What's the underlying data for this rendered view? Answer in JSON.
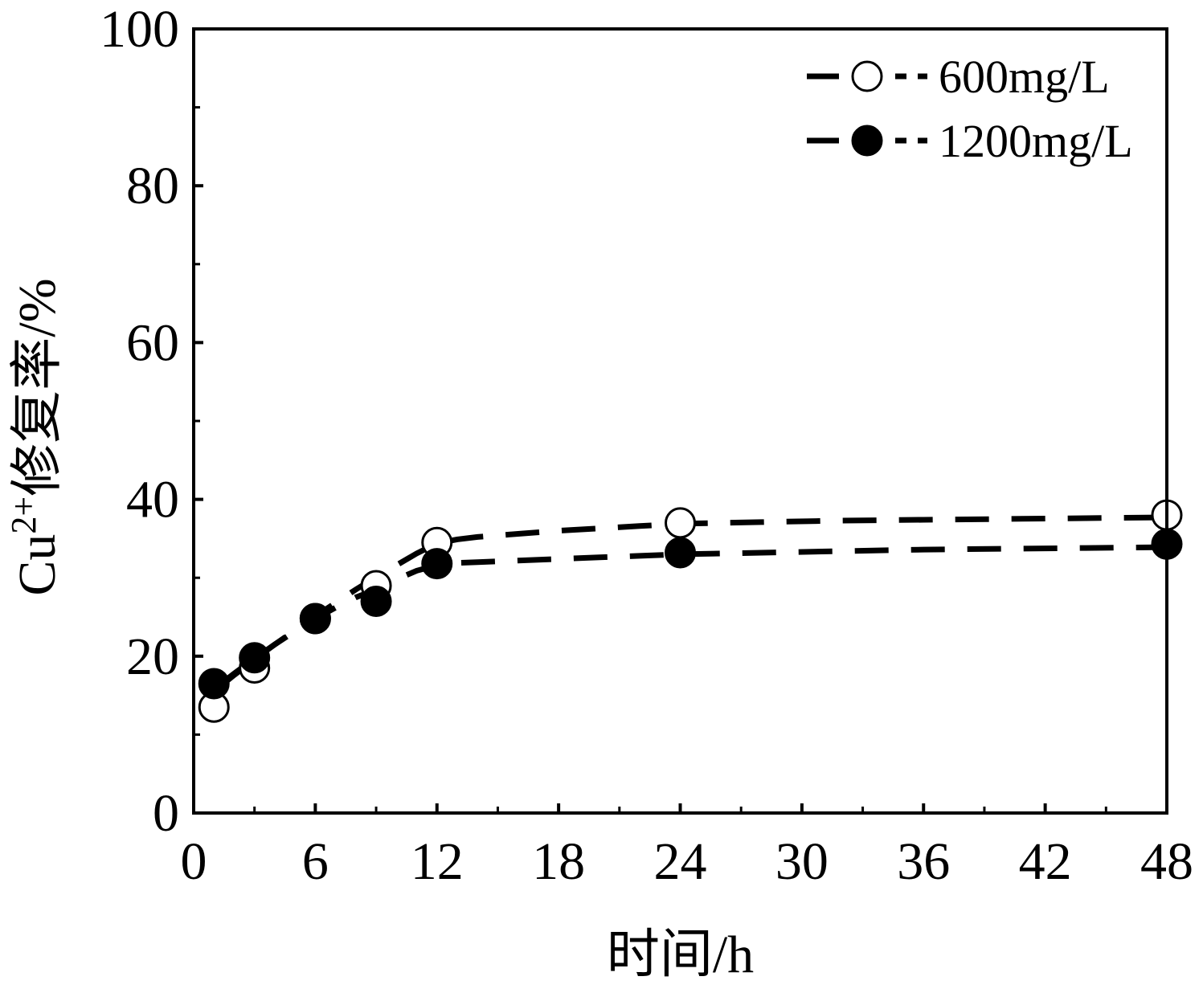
{
  "chart_data": {
    "type": "scatter",
    "title": "",
    "xlabel": "时间/h",
    "ylabel_main": "Cu",
    "ylabel_sup": "2+",
    "ylabel_rest": "修复率/%",
    "xlim": [
      0,
      48
    ],
    "ylim": [
      0,
      100
    ],
    "x_ticks": [
      0,
      6,
      12,
      18,
      24,
      30,
      36,
      42,
      48
    ],
    "y_ticks": [
      0,
      20,
      40,
      60,
      80,
      100
    ],
    "grid": false,
    "legend_position": "top-right",
    "x": [
      1,
      3,
      6,
      9,
      12,
      24,
      48
    ],
    "series": [
      {
        "name": "600mg/L",
        "marker": "open-circle",
        "values": [
          13.5,
          18.5,
          24.8,
          29,
          34.5,
          37,
          38
        ],
        "fit_x": [
          1,
          2,
          3,
          4,
          5,
          6,
          7,
          8,
          9,
          10,
          11,
          12,
          13,
          14,
          16,
          18,
          20,
          22,
          24,
          28,
          32,
          36,
          40,
          44,
          48
        ],
        "fit_y": [
          15.5,
          17.6,
          19.6,
          21.5,
          23.3,
          25.1,
          26.8,
          28.5,
          30.1,
          31.6,
          33.1,
          34.4,
          34.9,
          35.2,
          35.6,
          36.0,
          36.3,
          36.6,
          36.9,
          37.1,
          37.3,
          37.4,
          37.5,
          37.6,
          37.7
        ]
      },
      {
        "name": "1200mg/L",
        "marker": "filled-circle",
        "values": [
          16.5,
          19.8,
          24.8,
          27,
          31.8,
          33.2,
          34.3
        ],
        "fit_x": [
          1,
          2,
          3,
          4,
          5,
          6,
          7,
          8,
          9,
          10,
          11,
          12,
          13,
          14,
          16,
          18,
          20,
          22,
          24,
          28,
          32,
          36,
          40,
          44,
          48
        ],
        "fit_y": [
          15.8,
          17.8,
          19.7,
          21.5,
          23.2,
          24.8,
          26.2,
          27.5,
          28.5,
          29.8,
          30.9,
          31.6,
          31.9,
          32.0,
          32.2,
          32.4,
          32.6,
          32.8,
          33.0,
          33.2,
          33.4,
          33.6,
          33.7,
          33.8,
          33.9
        ]
      }
    ]
  }
}
